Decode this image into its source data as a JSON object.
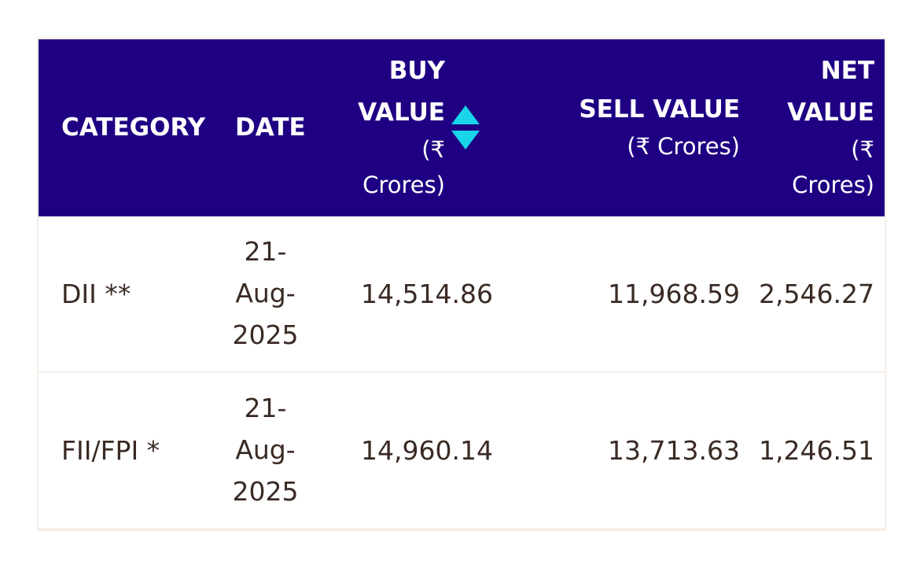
{
  "table": {
    "headers": {
      "category": "CATEGORY",
      "date": "DATE",
      "buy_line1": "BUY",
      "buy_line2": "VALUE",
      "buy_line3": "(₹",
      "buy_line4": "Crores)",
      "sell_line1": "SELL VALUE",
      "sell_line2": "(₹ Crores)",
      "net_line1": "NET",
      "net_line2": "VALUE",
      "net_line3": "(₹",
      "net_line4": "Crores)"
    },
    "rows": [
      {
        "category": "DII **",
        "date_line1": "21-",
        "date_line2": "Aug-",
        "date_line3": "2025",
        "buy_value": "14,514.86",
        "sell_value": "11,968.59",
        "net_value": "2,546.27"
      },
      {
        "category": "FII/FPI *",
        "date_line1": "21-",
        "date_line2": "Aug-",
        "date_line3": "2025",
        "buy_value": "14,960.14",
        "sell_value": "13,713.63",
        "net_value": "1,246.51"
      }
    ]
  },
  "colors": {
    "header_bg": "#1f0083",
    "sort_icon": "#19d5ea",
    "body_text": "#3a2a24"
  },
  "icons": {
    "sort": "sort-up-down-icon"
  }
}
